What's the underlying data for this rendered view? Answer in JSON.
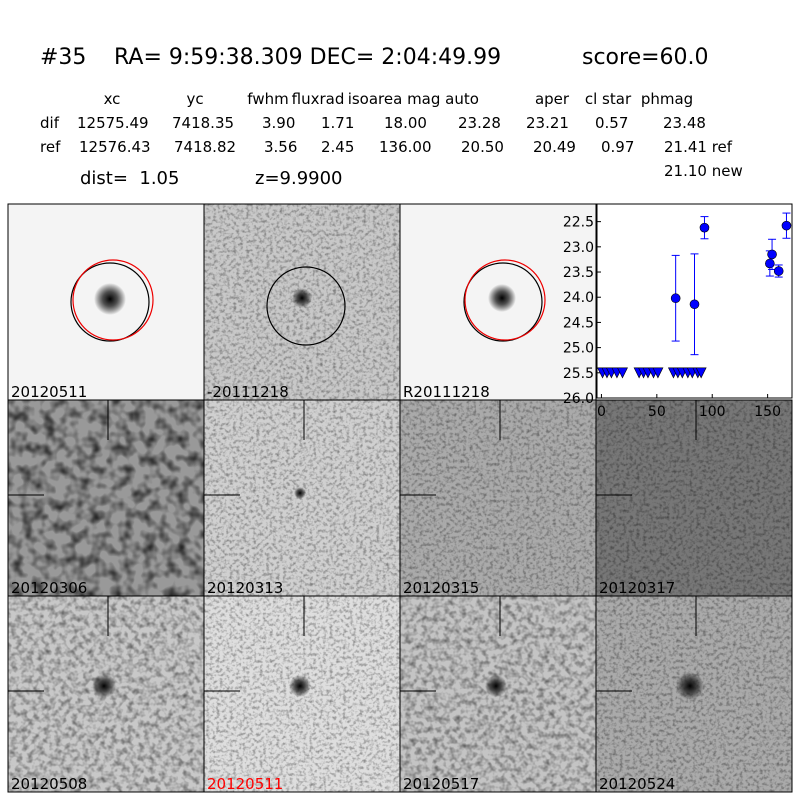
{
  "header": {
    "id": "#35",
    "coords": "RA= 9:59:38.309 DEC= 2:04:49.99",
    "score": "score=60.0"
  },
  "table": {
    "columns": [
      "xc",
      "yc",
      "fwhm",
      "fluxrad",
      "isoarea",
      "mag auto",
      "aper",
      "cl star",
      "phmag"
    ],
    "rows": [
      [
        "dif",
        "12575.49",
        "7418.35",
        "3.90",
        "1.71",
        "18.00",
        "23.28",
        "23.21",
        "0.57",
        "23.48"
      ],
      [
        "ref",
        "12576.43",
        "7418.82",
        "3.56",
        "2.45",
        "136.00",
        "20.50",
        "20.49",
        "0.97",
        "21.41 ref"
      ]
    ],
    "extra": "21.10 new"
  },
  "summary": {
    "dist": "dist=  1.05",
    "z": "z=9.9900"
  },
  "panels": [
    {
      "label": "20120511"
    },
    {
      "label": "-20111218"
    },
    {
      "label": "R20111218"
    },
    {
      "label": "20120306"
    },
    {
      "label": "20120313"
    },
    {
      "label": "20120315"
    },
    {
      "label": "20120317"
    },
    {
      "label": "20120508"
    },
    {
      "label": "20120511",
      "color": "#ff0000"
    },
    {
      "label": "20120517"
    },
    {
      "label": "20120524"
    }
  ],
  "chart_data": {
    "type": "scatter",
    "xlim": [
      -4,
      172
    ],
    "xticks": [
      0,
      50,
      100,
      150
    ],
    "ylim": [
      26.0,
      22.15
    ],
    "yticks": [
      22.5,
      {
        "value": 23,
        "label": "23.0"
      },
      23.5,
      {
        "value": 24,
        "label": "24.0"
      },
      24.5,
      {
        "value": 25,
        "label": "25.0"
      },
      25.5,
      {
        "value": 26,
        "label": "26.0"
      }
    ],
    "series": [
      {
        "color": "#0000ff",
        "marker": "circle",
        "x": [
          67,
          84,
          93,
          152,
          154,
          160,
          167
        ],
        "values": [
          24.02,
          24.14,
          22.62,
          23.33,
          23.15,
          23.48,
          22.58
        ],
        "errors": [
          0.85,
          1.0,
          0.22,
          0.25,
          0.3,
          0.12,
          0.25
        ]
      },
      {
        "color": "#0000ff",
        "marker": "triangle",
        "x": [
          1,
          5,
          9,
          14,
          19,
          34,
          38,
          42,
          47,
          51,
          65,
          69,
          73,
          78,
          82,
          87,
          90
        ],
        "values": [
          25.5,
          25.5,
          25.5,
          25.5,
          25.5,
          25.5,
          25.5,
          25.5,
          25.5,
          25.5,
          25.5,
          25.5,
          25.5,
          25.5,
          25.5,
          25.5,
          25.5
        ]
      }
    ]
  }
}
